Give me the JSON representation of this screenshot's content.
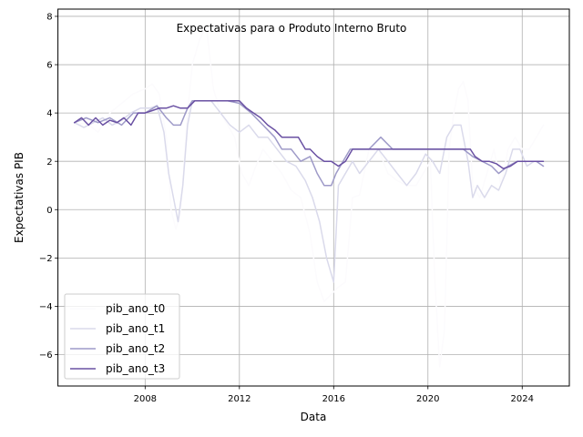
{
  "chart_data": {
    "type": "line",
    "title": "Expectativas para o Produto Interno Bruto",
    "xlabel": "Data",
    "ylabel": "Expectativas PIB",
    "xlim": [
      2004.3,
      2026.0
    ],
    "ylim": [
      -7.3,
      8.3
    ],
    "x_ticks": [
      2008,
      2012,
      2016,
      2020,
      2024
    ],
    "x_tick_labels": [
      "2008",
      "2012",
      "2016",
      "2020",
      "2024"
    ],
    "y_ticks": [
      -6,
      -4,
      -2,
      0,
      2,
      4,
      6,
      8
    ],
    "y_tick_labels": [
      "−6",
      "−4",
      "−2",
      "0",
      "2",
      "4",
      "6",
      "8"
    ],
    "grid": true,
    "legend": {
      "placement": "lower-left"
    },
    "series": [
      {
        "name": "pib_ano_t0",
        "color": "#fcfbfd",
        "x": [
          2005.0,
          2005.5,
          2006.0,
          2006.5,
          2007.0,
          2007.5,
          2008.0,
          2008.3,
          2008.6,
          2008.9,
          2009.1,
          2009.3,
          2009.5,
          2009.8,
          2010.0,
          2010.3,
          2010.6,
          2010.9,
          2011.2,
          2011.5,
          2011.8,
          2012.1,
          2012.4,
          2012.7,
          2013.0,
          2013.4,
          2013.8,
          2014.2,
          2014.6,
          2015.0,
          2015.3,
          2015.6,
          2015.9,
          2016.2,
          2016.5,
          2016.8,
          2017.1,
          2017.5,
          2017.9,
          2018.3,
          2018.7,
          2019.1,
          2019.5,
          2019.8,
          2020.1,
          2020.3,
          2020.5,
          2020.7,
          2020.9,
          2021.1,
          2021.3,
          2021.5,
          2021.7,
          2021.9,
          2022.2,
          2022.5,
          2022.8,
          2023.1,
          2023.4,
          2023.7,
          2024.0,
          2024.3,
          2024.6,
          2024.9
        ],
        "y": [
          3.5,
          3.6,
          3.2,
          4.0,
          4.4,
          4.8,
          5.0,
          5.2,
          4.8,
          3.0,
          0.0,
          -0.8,
          -0.2,
          4.0,
          6.0,
          7.0,
          7.6,
          5.0,
          4.0,
          3.5,
          3.0,
          1.5,
          1.0,
          1.8,
          2.5,
          2.0,
          1.5,
          0.8,
          0.5,
          -1.0,
          -3.0,
          -3.8,
          -3.5,
          -3.2,
          -3.0,
          0.5,
          0.6,
          2.5,
          2.5,
          1.5,
          1.2,
          1.0,
          1.0,
          1.5,
          2.0,
          -3.0,
          -6.5,
          -5.0,
          2.5,
          4.0,
          5.0,
          5.3,
          4.5,
          1.0,
          0.5,
          1.5,
          2.5,
          1.0,
          2.5,
          3.0,
          2.5,
          2.5,
          3.0,
          3.5
        ]
      },
      {
        "name": "pib_ano_t1",
        "color": "#dadaeb",
        "x": [
          2005.0,
          2005.4,
          2005.8,
          2006.2,
          2006.6,
          2007.0,
          2007.4,
          2007.8,
          2008.2,
          2008.5,
          2008.8,
          2009.0,
          2009.2,
          2009.4,
          2009.6,
          2009.8,
          2010.0,
          2010.4,
          2010.8,
          2011.2,
          2011.6,
          2012.0,
          2012.4,
          2012.8,
          2013.2,
          2013.6,
          2014.0,
          2014.4,
          2014.8,
          2015.1,
          2015.4,
          2015.7,
          2016.0,
          2016.2,
          2016.5,
          2016.8,
          2017.1,
          2017.5,
          2017.9,
          2018.3,
          2018.7,
          2019.1,
          2019.5,
          2019.9,
          2020.2,
          2020.5,
          2020.8,
          2021.1,
          2021.4,
          2021.7,
          2021.9,
          2022.1,
          2022.4,
          2022.7,
          2023.0,
          2023.3,
          2023.6,
          2023.9,
          2024.2,
          2024.5,
          2024.9
        ],
        "y": [
          3.6,
          3.4,
          3.6,
          3.8,
          3.5,
          3.7,
          4.0,
          4.2,
          4.2,
          4.3,
          3.2,
          1.5,
          0.5,
          -0.5,
          1.0,
          3.5,
          4.5,
          4.5,
          4.5,
          4.0,
          3.5,
          3.2,
          3.5,
          3.0,
          3.0,
          2.5,
          2.0,
          1.8,
          1.2,
          0.5,
          -0.5,
          -2.0,
          -3.0,
          1.0,
          1.5,
          2.0,
          1.5,
          2.0,
          2.5,
          2.0,
          1.5,
          1.0,
          1.5,
          2.3,
          2.0,
          1.5,
          3.0,
          3.5,
          3.5,
          2.0,
          0.5,
          1.0,
          0.5,
          1.0,
          0.8,
          1.5,
          2.5,
          2.5,
          1.8,
          2.0,
          2.0
        ]
      },
      {
        "name": "pib_ano_t2",
        "color": "#9e9ac8",
        "x": [
          2005.0,
          2005.5,
          2006.0,
          2006.5,
          2007.0,
          2007.5,
          2008.0,
          2008.5,
          2008.9,
          2009.2,
          2009.5,
          2009.8,
          2010.0,
          2010.5,
          2011.0,
          2011.5,
          2012.0,
          2012.5,
          2013.0,
          2013.5,
          2013.8,
          2014.2,
          2014.6,
          2015.0,
          2015.3,
          2015.6,
          2015.9,
          2016.1,
          2016.4,
          2016.7,
          2017.0,
          2017.5,
          2018.0,
          2018.5,
          2019.0,
          2019.5,
          2020.0,
          2020.5,
          2021.0,
          2021.5,
          2021.9,
          2022.3,
          2022.7,
          2023.0,
          2023.4,
          2023.8,
          2024.2,
          2024.6,
          2024.9
        ],
        "y": [
          3.6,
          3.8,
          3.6,
          3.8,
          3.5,
          4.0,
          4.0,
          4.3,
          3.8,
          3.5,
          3.5,
          4.2,
          4.5,
          4.5,
          4.5,
          4.5,
          4.4,
          4.0,
          3.5,
          3.0,
          2.5,
          2.5,
          2.0,
          2.2,
          1.5,
          1.0,
          1.0,
          1.5,
          2.0,
          2.5,
          2.5,
          2.5,
          3.0,
          2.5,
          2.5,
          2.5,
          2.5,
          2.5,
          2.5,
          2.5,
          2.2,
          2.0,
          1.8,
          1.5,
          1.8,
          2.0,
          2.0,
          2.0,
          1.8
        ]
      },
      {
        "name": "pib_ano_t3",
        "color": "#6a51a3",
        "x": [
          2005.0,
          2005.3,
          2005.6,
          2005.9,
          2006.2,
          2006.5,
          2006.8,
          2007.1,
          2007.4,
          2007.7,
          2008.0,
          2008.3,
          2008.6,
          2008.9,
          2009.2,
          2009.5,
          2009.8,
          2010.1,
          2010.5,
          2011.0,
          2011.5,
          2012.0,
          2012.3,
          2012.6,
          2012.9,
          2013.2,
          2013.5,
          2013.8,
          2014.1,
          2014.5,
          2014.8,
          2015.0,
          2015.3,
          2015.6,
          2015.9,
          2016.2,
          2016.5,
          2016.8,
          2017.2,
          2017.8,
          2018.4,
          2019.0,
          2019.6,
          2020.2,
          2020.8,
          2021.4,
          2021.8,
          2022.0,
          2022.3,
          2022.6,
          2022.9,
          2023.2,
          2023.5,
          2023.8,
          2024.1,
          2024.5,
          2024.9
        ],
        "y": [
          3.6,
          3.8,
          3.5,
          3.8,
          3.5,
          3.7,
          3.6,
          3.8,
          3.5,
          4.0,
          4.0,
          4.1,
          4.2,
          4.2,
          4.3,
          4.2,
          4.2,
          4.5,
          4.5,
          4.5,
          4.5,
          4.5,
          4.2,
          4.0,
          3.8,
          3.5,
          3.3,
          3.0,
          3.0,
          3.0,
          2.5,
          2.5,
          2.2,
          2.0,
          2.0,
          1.8,
          2.0,
          2.5,
          2.5,
          2.5,
          2.5,
          2.5,
          2.5,
          2.5,
          2.5,
          2.5,
          2.5,
          2.2,
          2.0,
          2.0,
          1.9,
          1.7,
          1.8,
          2.0,
          2.0,
          2.0,
          2.0
        ]
      }
    ]
  }
}
